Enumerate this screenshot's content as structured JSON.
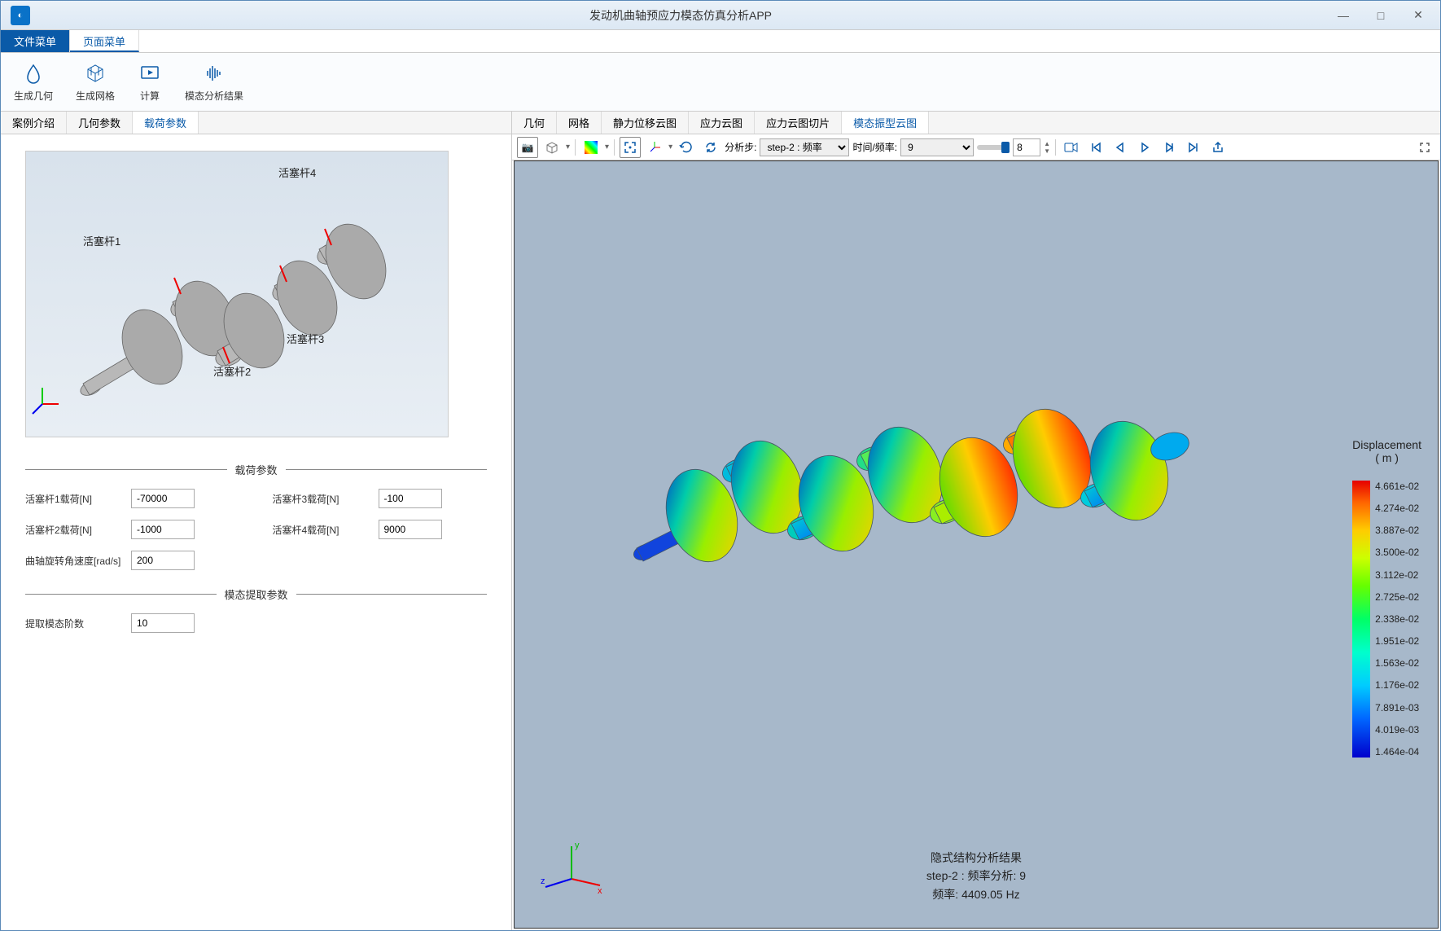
{
  "window": {
    "title": "发动机曲轴预应力模态仿真分析APP"
  },
  "menus": {
    "file": "文件菜单",
    "page": "页面菜单"
  },
  "ribbon": {
    "gen_geom": "生成几何",
    "gen_mesh": "生成网格",
    "compute": "计算",
    "modal_result": "模态分析结果"
  },
  "left_tabs": {
    "case_intro": "案例介绍",
    "geom_param": "几何参数",
    "load_param": "载荷参数"
  },
  "preview_labels": {
    "rod1": "活塞杆1",
    "rod2": "活塞杆2",
    "rod3": "活塞杆3",
    "rod4": "活塞杆4"
  },
  "sections": {
    "load": "载荷参数",
    "modal": "模态提取参数"
  },
  "form": {
    "rod1_label": "活塞杆1载荷[N]",
    "rod1_val": "-70000",
    "rod2_label": "活塞杆2载荷[N]",
    "rod2_val": "-1000",
    "rod3_label": "活塞杆3载荷[N]",
    "rod3_val": "-100",
    "rod4_label": "活塞杆4载荷[N]",
    "rod4_val": "9000",
    "omega_label": "曲轴旋转角速度[rad/s]",
    "omega_val": "200",
    "modal_order_label": "提取模态阶数",
    "modal_order_val": "10"
  },
  "right_tabs": {
    "geom": "几何",
    "mesh": "网格",
    "static_disp": "静力位移云图",
    "stress": "应力云图",
    "stress_slice": "应力云图切片",
    "modal_shape": "模态振型云图"
  },
  "viz_toolbar": {
    "step_label": "分析步:",
    "step_sel": "step-2 : 频率",
    "time_label": "时间/频率:",
    "time_sel": "9",
    "spin_val": "8"
  },
  "legend": {
    "title": "Displacement",
    "unit": "( m )",
    "ticks": [
      "4.661e-02",
      "4.274e-02",
      "3.887e-02",
      "3.500e-02",
      "3.112e-02",
      "2.725e-02",
      "2.338e-02",
      "1.951e-02",
      "1.563e-02",
      "1.176e-02",
      "7.891e-03",
      "4.019e-03",
      "1.464e-04"
    ]
  },
  "result_overlay": {
    "l1": "隐式结构分析结果",
    "l2": "step-2 : 频率分析: 9",
    "l3": "频率:  4409.05  Hz"
  },
  "colors": {
    "viewport_bg": "#a7b8ca",
    "accent": "#0a5aa8"
  }
}
